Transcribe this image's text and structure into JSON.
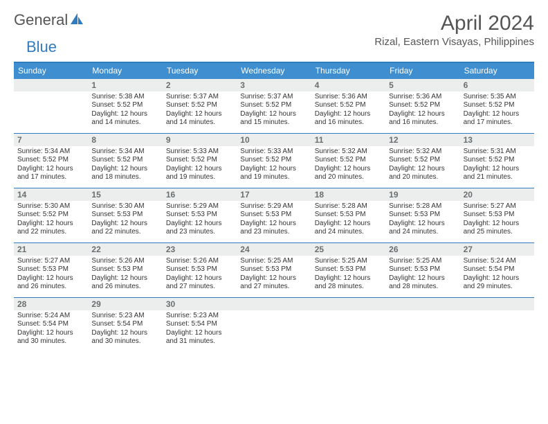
{
  "brand": {
    "word1": "General",
    "word2": "Blue"
  },
  "title": {
    "month": "April 2024",
    "location": "Rizal, Eastern Visayas, Philippines"
  },
  "colors": {
    "header_bar": "#3f8fd0",
    "rule": "#2f7bbf",
    "daynum_bg": "#eceeee",
    "daynum_text": "#6a6e70",
    "text": "#333333",
    "title_text": "#555555"
  },
  "layout": {
    "columns": 7,
    "rows": 5,
    "first_weekday_offset": 1,
    "daynum_fontsize": 12,
    "body_fontsize": 10,
    "dow_fontsize": 12
  },
  "dow": [
    "Sunday",
    "Monday",
    "Tuesday",
    "Wednesday",
    "Thursday",
    "Friday",
    "Saturday"
  ],
  "days": [
    {
      "n": "",
      "sunrise": "",
      "sunset": "",
      "daylight": ""
    },
    {
      "n": "1",
      "sunrise": "Sunrise: 5:38 AM",
      "sunset": "Sunset: 5:52 PM",
      "daylight": "Daylight: 12 hours and 14 minutes."
    },
    {
      "n": "2",
      "sunrise": "Sunrise: 5:37 AM",
      "sunset": "Sunset: 5:52 PM",
      "daylight": "Daylight: 12 hours and 14 minutes."
    },
    {
      "n": "3",
      "sunrise": "Sunrise: 5:37 AM",
      "sunset": "Sunset: 5:52 PM",
      "daylight": "Daylight: 12 hours and 15 minutes."
    },
    {
      "n": "4",
      "sunrise": "Sunrise: 5:36 AM",
      "sunset": "Sunset: 5:52 PM",
      "daylight": "Daylight: 12 hours and 16 minutes."
    },
    {
      "n": "5",
      "sunrise": "Sunrise: 5:36 AM",
      "sunset": "Sunset: 5:52 PM",
      "daylight": "Daylight: 12 hours and 16 minutes."
    },
    {
      "n": "6",
      "sunrise": "Sunrise: 5:35 AM",
      "sunset": "Sunset: 5:52 PM",
      "daylight": "Daylight: 12 hours and 17 minutes."
    },
    {
      "n": "7",
      "sunrise": "Sunrise: 5:34 AM",
      "sunset": "Sunset: 5:52 PM",
      "daylight": "Daylight: 12 hours and 17 minutes."
    },
    {
      "n": "8",
      "sunrise": "Sunrise: 5:34 AM",
      "sunset": "Sunset: 5:52 PM",
      "daylight": "Daylight: 12 hours and 18 minutes."
    },
    {
      "n": "9",
      "sunrise": "Sunrise: 5:33 AM",
      "sunset": "Sunset: 5:52 PM",
      "daylight": "Daylight: 12 hours and 19 minutes."
    },
    {
      "n": "10",
      "sunrise": "Sunrise: 5:33 AM",
      "sunset": "Sunset: 5:52 PM",
      "daylight": "Daylight: 12 hours and 19 minutes."
    },
    {
      "n": "11",
      "sunrise": "Sunrise: 5:32 AM",
      "sunset": "Sunset: 5:52 PM",
      "daylight": "Daylight: 12 hours and 20 minutes."
    },
    {
      "n": "12",
      "sunrise": "Sunrise: 5:32 AM",
      "sunset": "Sunset: 5:52 PM",
      "daylight": "Daylight: 12 hours and 20 minutes."
    },
    {
      "n": "13",
      "sunrise": "Sunrise: 5:31 AM",
      "sunset": "Sunset: 5:52 PM",
      "daylight": "Daylight: 12 hours and 21 minutes."
    },
    {
      "n": "14",
      "sunrise": "Sunrise: 5:30 AM",
      "sunset": "Sunset: 5:52 PM",
      "daylight": "Daylight: 12 hours and 22 minutes."
    },
    {
      "n": "15",
      "sunrise": "Sunrise: 5:30 AM",
      "sunset": "Sunset: 5:53 PM",
      "daylight": "Daylight: 12 hours and 22 minutes."
    },
    {
      "n": "16",
      "sunrise": "Sunrise: 5:29 AM",
      "sunset": "Sunset: 5:53 PM",
      "daylight": "Daylight: 12 hours and 23 minutes."
    },
    {
      "n": "17",
      "sunrise": "Sunrise: 5:29 AM",
      "sunset": "Sunset: 5:53 PM",
      "daylight": "Daylight: 12 hours and 23 minutes."
    },
    {
      "n": "18",
      "sunrise": "Sunrise: 5:28 AM",
      "sunset": "Sunset: 5:53 PM",
      "daylight": "Daylight: 12 hours and 24 minutes."
    },
    {
      "n": "19",
      "sunrise": "Sunrise: 5:28 AM",
      "sunset": "Sunset: 5:53 PM",
      "daylight": "Daylight: 12 hours and 24 minutes."
    },
    {
      "n": "20",
      "sunrise": "Sunrise: 5:27 AM",
      "sunset": "Sunset: 5:53 PM",
      "daylight": "Daylight: 12 hours and 25 minutes."
    },
    {
      "n": "21",
      "sunrise": "Sunrise: 5:27 AM",
      "sunset": "Sunset: 5:53 PM",
      "daylight": "Daylight: 12 hours and 26 minutes."
    },
    {
      "n": "22",
      "sunrise": "Sunrise: 5:26 AM",
      "sunset": "Sunset: 5:53 PM",
      "daylight": "Daylight: 12 hours and 26 minutes."
    },
    {
      "n": "23",
      "sunrise": "Sunrise: 5:26 AM",
      "sunset": "Sunset: 5:53 PM",
      "daylight": "Daylight: 12 hours and 27 minutes."
    },
    {
      "n": "24",
      "sunrise": "Sunrise: 5:25 AM",
      "sunset": "Sunset: 5:53 PM",
      "daylight": "Daylight: 12 hours and 27 minutes."
    },
    {
      "n": "25",
      "sunrise": "Sunrise: 5:25 AM",
      "sunset": "Sunset: 5:53 PM",
      "daylight": "Daylight: 12 hours and 28 minutes."
    },
    {
      "n": "26",
      "sunrise": "Sunrise: 5:25 AM",
      "sunset": "Sunset: 5:53 PM",
      "daylight": "Daylight: 12 hours and 28 minutes."
    },
    {
      "n": "27",
      "sunrise": "Sunrise: 5:24 AM",
      "sunset": "Sunset: 5:54 PM",
      "daylight": "Daylight: 12 hours and 29 minutes."
    },
    {
      "n": "28",
      "sunrise": "Sunrise: 5:24 AM",
      "sunset": "Sunset: 5:54 PM",
      "daylight": "Daylight: 12 hours and 30 minutes."
    },
    {
      "n": "29",
      "sunrise": "Sunrise: 5:23 AM",
      "sunset": "Sunset: 5:54 PM",
      "daylight": "Daylight: 12 hours and 30 minutes."
    },
    {
      "n": "30",
      "sunrise": "Sunrise: 5:23 AM",
      "sunset": "Sunset: 5:54 PM",
      "daylight": "Daylight: 12 hours and 31 minutes."
    },
    {
      "n": "",
      "sunrise": "",
      "sunset": "",
      "daylight": ""
    },
    {
      "n": "",
      "sunrise": "",
      "sunset": "",
      "daylight": ""
    },
    {
      "n": "",
      "sunrise": "",
      "sunset": "",
      "daylight": ""
    },
    {
      "n": "",
      "sunrise": "",
      "sunset": "",
      "daylight": ""
    }
  ]
}
